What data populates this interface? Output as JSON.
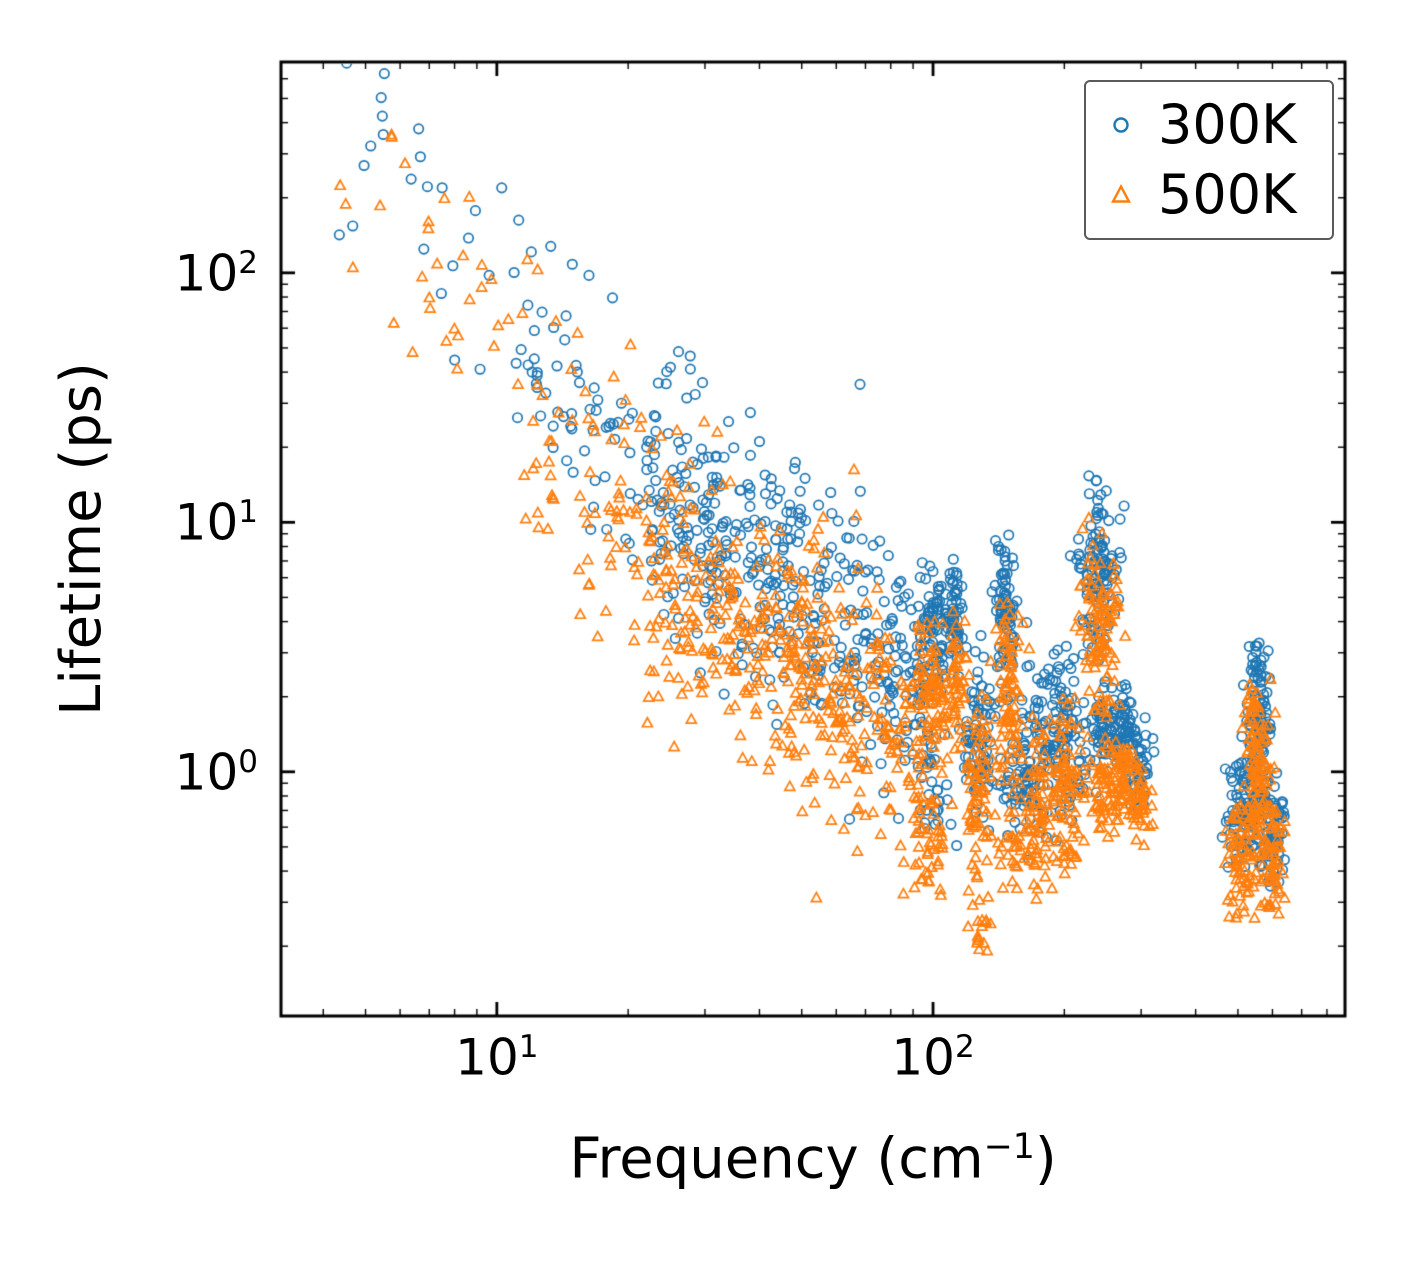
{
  "chart_data": {
    "type": "scatter",
    "title": "",
    "xlabel": {
      "prefix": "Frequency (cm",
      "sup": "−1",
      "suffix": ")"
    },
    "ylabel": "Lifetime (ps)",
    "x_scale": "log",
    "y_scale": "log",
    "xlim": [
      3.2,
      880
    ],
    "ylim": [
      0.105,
      700
    ],
    "grid": false,
    "x_ticks": [
      {
        "value": 10,
        "base": "10",
        "exp": "1"
      },
      {
        "value": 100,
        "base": "10",
        "exp": "2"
      }
    ],
    "y_ticks": [
      {
        "value": 1,
        "base": "10",
        "exp": "0"
      },
      {
        "value": 10,
        "base": "10",
        "exp": "1"
      },
      {
        "value": 100,
        "base": "10",
        "exp": "2"
      }
    ],
    "legend": {
      "position": "upper right",
      "entries": [
        {
          "label": "300K",
          "marker": "circle",
          "color": "#1f77b4"
        },
        {
          "label": "500K",
          "marker": "triangle",
          "color": "#ff7f0e"
        }
      ]
    },
    "series": [
      {
        "name": "300K",
        "marker": "circle",
        "color": "#1f77b4",
        "seed": 42,
        "trend_segments": [
          {
            "xlo": 4.2,
            "xhi": 11,
            "n": 26,
            "a": 4.17,
            "b": -2.3,
            "sigma": 0.24
          },
          {
            "xlo": 11,
            "xhi": 22,
            "n": 64,
            "a": 3.86,
            "b": -2.0,
            "sigma": 0.26
          },
          {
            "xlo": 22,
            "xhi": 95,
            "n": 430,
            "a": 2.92,
            "b": -1.3,
            "sigma": 0.26
          }
        ],
        "clusters": [
          {
            "x": 100,
            "sx": 0.02,
            "ylo": 1.8,
            "yhi": 7.2,
            "n": 85
          },
          {
            "x": 100,
            "sx": 0.02,
            "ylo": 0.45,
            "yhi": 1.8,
            "n": 30
          },
          {
            "x": 112,
            "sx": 0.008,
            "ylo": 2.2,
            "yhi": 7.8,
            "n": 55
          },
          {
            "x": 126,
            "sx": 0.018,
            "ylo": 0.5,
            "yhi": 4.0,
            "n": 80
          },
          {
            "x": 147,
            "sx": 0.014,
            "ylo": 1.5,
            "yhi": 9.6,
            "n": 85
          },
          {
            "x": 152,
            "sx": 0.018,
            "ylo": 0.5,
            "yhi": 1.5,
            "n": 30
          },
          {
            "x": 170,
            "sx": 0.02,
            "ylo": 0.38,
            "yhi": 3.0,
            "n": 70
          },
          {
            "x": 200,
            "sx": 0.024,
            "ylo": 0.55,
            "yhi": 3.5,
            "n": 105
          },
          {
            "x": 240,
            "sx": 0.022,
            "ylo": 2.5,
            "yhi": 17,
            "n": 115
          },
          {
            "x": 247,
            "sx": 0.018,
            "ylo": 0.8,
            "yhi": 2.5,
            "n": 55
          },
          {
            "x": 271,
            "sx": 0.014,
            "ylo": 1.0,
            "yhi": 2.3,
            "n": 55
          },
          {
            "x": 296,
            "sx": 0.014,
            "ylo": 0.6,
            "yhi": 1.8,
            "n": 45
          },
          {
            "x": 515,
            "sx": 0.02,
            "ylo": 0.35,
            "yhi": 1.2,
            "n": 85
          },
          {
            "x": 558,
            "sx": 0.014,
            "ylo": 0.6,
            "yhi": 4.3,
            "n": 110
          },
          {
            "x": 602,
            "sx": 0.012,
            "ylo": 0.32,
            "yhi": 1.1,
            "n": 60
          }
        ]
      },
      {
        "name": "500K",
        "marker": "triangle",
        "color": "#ff7f0e",
        "seed": 7,
        "trend_segments": [
          {
            "xlo": 4.0,
            "xhi": 11,
            "n": 30,
            "a": 3.95,
            "b": -2.3,
            "sigma": 0.26
          },
          {
            "xlo": 11,
            "xhi": 22,
            "n": 72,
            "a": 3.6,
            "b": -2.0,
            "sigma": 0.28
          },
          {
            "xlo": 22,
            "xhi": 95,
            "n": 460,
            "a": 2.62,
            "b": -1.3,
            "sigma": 0.27
          }
        ],
        "clusters": [
          {
            "x": 100,
            "sx": 0.02,
            "ylo": 0.9,
            "yhi": 4.5,
            "n": 85
          },
          {
            "x": 100,
            "sx": 0.02,
            "ylo": 0.28,
            "yhi": 0.9,
            "n": 40
          },
          {
            "x": 114,
            "sx": 0.009,
            "ylo": 1.2,
            "yhi": 5.0,
            "n": 50
          },
          {
            "x": 128,
            "sx": 0.018,
            "ylo": 0.25,
            "yhi": 2.5,
            "n": 80
          },
          {
            "x": 130,
            "sx": 0.012,
            "ylo": 0.16,
            "yhi": 0.3,
            "n": 14
          },
          {
            "x": 149,
            "sx": 0.014,
            "ylo": 0.8,
            "yhi": 5.6,
            "n": 80
          },
          {
            "x": 154,
            "sx": 0.018,
            "ylo": 0.3,
            "yhi": 0.8,
            "n": 30
          },
          {
            "x": 173,
            "sx": 0.02,
            "ylo": 0.25,
            "yhi": 1.8,
            "n": 70
          },
          {
            "x": 203,
            "sx": 0.024,
            "ylo": 0.35,
            "yhi": 2.2,
            "n": 100
          },
          {
            "x": 241,
            "sx": 0.022,
            "ylo": 1.5,
            "yhi": 10.5,
            "n": 105
          },
          {
            "x": 249,
            "sx": 0.018,
            "ylo": 0.5,
            "yhi": 1.5,
            "n": 55
          },
          {
            "x": 272,
            "sx": 0.014,
            "ylo": 0.6,
            "yhi": 1.6,
            "n": 55
          },
          {
            "x": 297,
            "sx": 0.014,
            "ylo": 0.5,
            "yhi": 1.1,
            "n": 45
          },
          {
            "x": 512,
            "sx": 0.02,
            "ylo": 0.22,
            "yhi": 0.9,
            "n": 80
          },
          {
            "x": 556,
            "sx": 0.014,
            "ylo": 0.4,
            "yhi": 2.9,
            "n": 105
          },
          {
            "x": 600,
            "sx": 0.012,
            "ylo": 0.24,
            "yhi": 0.9,
            "n": 65
          }
        ]
      }
    ]
  }
}
